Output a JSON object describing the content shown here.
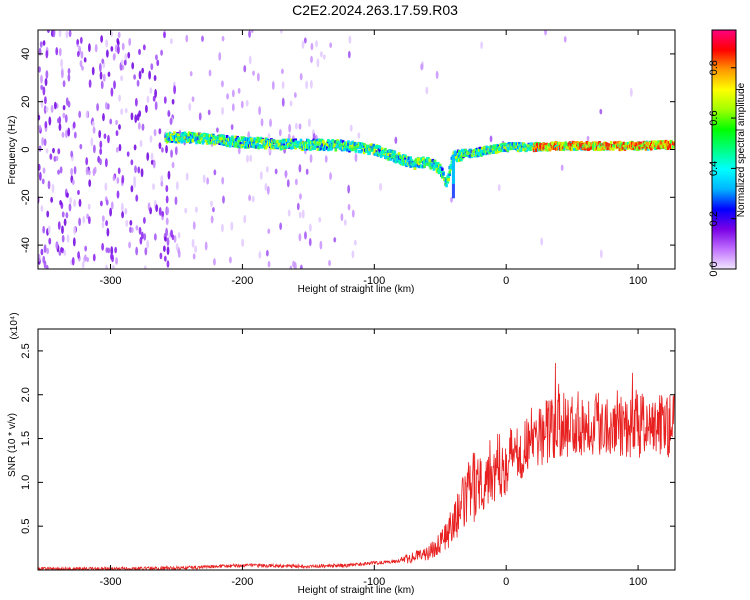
{
  "title": "C2E2.2024.263.17.59.R03",
  "chart_data": [
    {
      "type": "heatmap",
      "xlabel": "Height of straight line (km)",
      "ylabel": "Frequency (Hz)",
      "xlim": [
        -355,
        128
      ],
      "ylim": [
        -50,
        50
      ],
      "xticks": [
        -300,
        -200,
        -100,
        0,
        100
      ],
      "yticks": [
        -40,
        -20,
        0,
        20,
        40
      ],
      "colorbar": {
        "label": "Normalized spectral amplitude",
        "range": [
          0,
          0.95
        ],
        "ticks": [
          "0.0",
          "0.2",
          "0.4",
          "0.6",
          "0.8"
        ],
        "colors": [
          "#f2e6ff",
          "#c070ff",
          "#7a00e6",
          "#0000ff",
          "#00b4ff",
          "#00ffff",
          "#00ff80",
          "#00ff00",
          "#a0ff00",
          "#ffff00",
          "#ff9900",
          "#ff0000",
          "#ff0080"
        ]
      },
      "ridge": {
        "name": "",
        "x": [
          -258,
          -240,
          -220,
          -200,
          -180,
          -160,
          -140,
          -120,
          -100,
          -80,
          -70,
          -60,
          -50,
          -45,
          -40,
          -30,
          -20,
          -10,
          0,
          20,
          40,
          60,
          80,
          100,
          128
        ],
        "y": [
          5,
          5,
          4,
          3,
          2.5,
          2,
          2,
          1.5,
          0,
          -4,
          -6,
          -5,
          -8,
          -14,
          -3,
          -2,
          -1,
          0,
          1,
          1,
          1.5,
          1.5,
          1.5,
          1.5,
          2
        ]
      },
      "spike": {
        "x": -40,
        "y_range": [
          -20,
          -2
        ]
      }
    },
    {
      "type": "line",
      "xlabel": "Height of straight line (km)",
      "ylabel": "SNR (10 * v/v)",
      "scale_label": "(x10⁴)",
      "xlim": [
        -355,
        128
      ],
      "ylim": [
        0,
        2.75
      ],
      "xticks": [
        -300,
        -200,
        -100,
        0,
        100
      ],
      "yticks": [
        0.5,
        1.0,
        1.5,
        2.0,
        2.5
      ],
      "ytick_labels": [
        "0.5",
        "1.0",
        "1.5",
        "2.0",
        "2.5"
      ],
      "series_color": "#e82020",
      "series": [
        {
          "name": "",
          "x": [
            -355,
            -300,
            -250,
            -200,
            -150,
            -120,
            -100,
            -80,
            -60,
            -50,
            -40,
            -30,
            -20,
            -10,
            0,
            10,
            20,
            30,
            40,
            60,
            80,
            100,
            128
          ],
          "y": [
            0.01,
            0.01,
            0.02,
            0.05,
            0.04,
            0.05,
            0.08,
            0.1,
            0.18,
            0.3,
            0.5,
            0.8,
            1.0,
            1.1,
            1.2,
            1.35,
            1.45,
            1.55,
            1.6,
            1.65,
            1.65,
            1.6,
            1.62
          ]
        }
      ]
    }
  ]
}
